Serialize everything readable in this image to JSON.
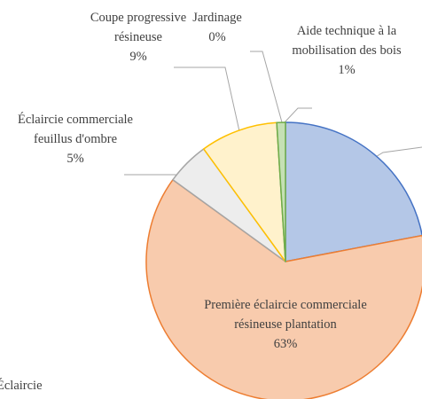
{
  "chart_data": {
    "type": "pie",
    "categories": [
      null,
      "Première éclaircie commerciale résineuse plantation",
      "Éclaircie commerciale feuillus d'ombre",
      "Coupe progressive résineuse",
      "Jardinage",
      "Aide technique à la mobilisation des bois"
    ],
    "values": [
      22,
      63,
      5,
      9,
      0,
      1
    ],
    "value_labels": [
      null,
      "63%",
      "5%",
      "9%",
      "0%",
      "1%"
    ],
    "colors": [
      "#4472c4",
      "#ed7d31",
      "#a5a5a5",
      "#ffc000",
      "#5b9bd5",
      "#70ad47"
    ],
    "fills": [
      "#b4c7e7",
      "#f8cbad",
      "#ededed",
      "#fff2cc",
      "#deebf7",
      "#c5e0b4"
    ],
    "annotations": [
      "Éclaircie"
    ]
  }
}
